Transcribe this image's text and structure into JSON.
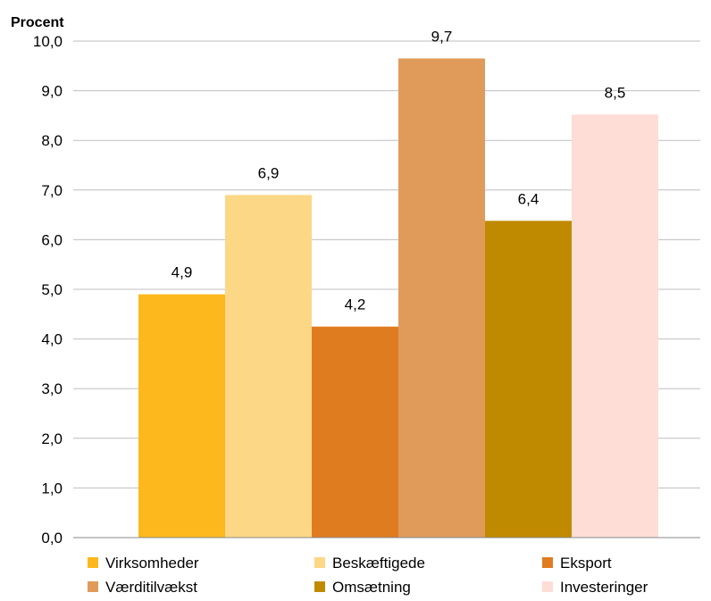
{
  "chart_data": {
    "type": "bar",
    "ylabel": "Procent",
    "ylim": [
      0,
      10
    ],
    "y_ticks": [
      "0,0",
      "1,0",
      "2,0",
      "3,0",
      "4,0",
      "5,0",
      "6,0",
      "7,0",
      "8,0",
      "9,0",
      "10,0"
    ],
    "grid": true,
    "legend_position": "bottom",
    "series": [
      {
        "name": "Virksomheder",
        "value": 4.9,
        "label": "4,9",
        "color": "#FDB81E"
      },
      {
        "name": "Beskæftigede",
        "value": 6.9,
        "label": "6,9",
        "color": "#FCD785"
      },
      {
        "name": "Eksport",
        "value": 4.25,
        "label": "4,2",
        "color": "#E07C20"
      },
      {
        "name": "Værditilvækst",
        "value": 9.65,
        "label": "9,7",
        "color": "#E09B5B"
      },
      {
        "name": "Omsætning",
        "value": 6.38,
        "label": "6,4",
        "color": "#C08A00"
      },
      {
        "name": "Investeringer",
        "value": 8.52,
        "label": "8,5",
        "color": "#FDDDD6"
      }
    ]
  }
}
